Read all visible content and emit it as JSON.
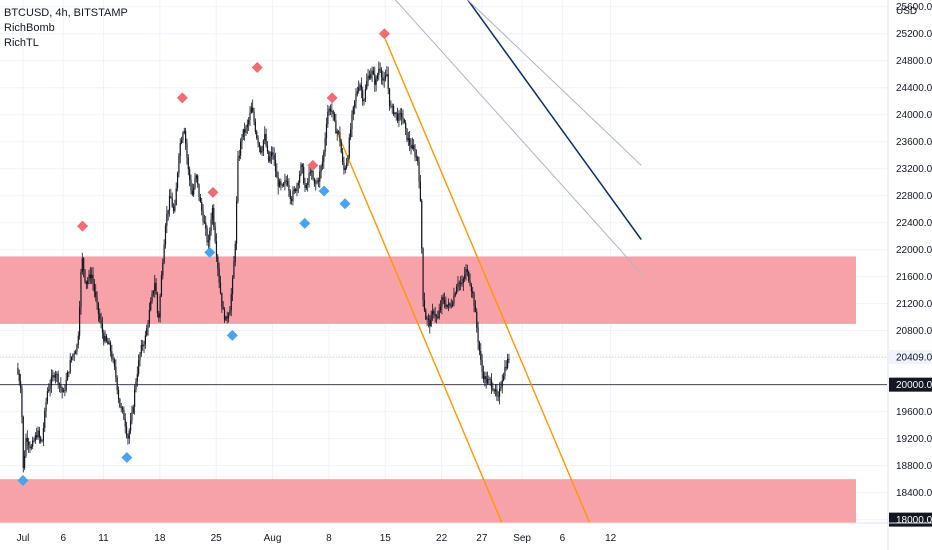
{
  "header": {
    "symbol_line": "BTCUSD, 4h, BITSTAMP",
    "indicators": [
      "RichBomb",
      "RichTL"
    ]
  },
  "chart_data": {
    "type": "candlestick",
    "symbol": "BTCUSD",
    "timeframe": "4h",
    "exchange": "BITSTAMP",
    "y_axis_unit": "USD",
    "ylim": [
      17950,
      25700
    ],
    "y_ticks": [
      18000,
      18400,
      18800,
      19200,
      19600,
      20000,
      20400,
      20800,
      21200,
      21600,
      22000,
      22400,
      22800,
      23200,
      23600,
      24000,
      24400,
      24800,
      25200,
      25600
    ],
    "x_ticks": [
      {
        "label": "Jul",
        "day": 1
      },
      {
        "label": "6",
        "day": 6
      },
      {
        "label": "11",
        "day": 11
      },
      {
        "label": "18",
        "day": 18
      },
      {
        "label": "25",
        "day": 25
      },
      {
        "label": "Aug",
        "day": 32
      },
      {
        "label": "8",
        "day": 39
      },
      {
        "label": "15",
        "day": 46
      },
      {
        "label": "22",
        "day": 53
      },
      {
        "label": "27",
        "day": 58
      },
      {
        "label": "Sep",
        "day": 63
      },
      {
        "label": "6",
        "day": 68
      },
      {
        "label": "12",
        "day": 74
      }
    ],
    "price_path": [
      [
        0.2,
        20250
      ],
      [
        0.8,
        19950
      ],
      [
        1.0,
        18700
      ],
      [
        1.4,
        19250
      ],
      [
        2.0,
        19050
      ],
      [
        2.8,
        19300
      ],
      [
        3.3,
        19100
      ],
      [
        4.0,
        19900
      ],
      [
        5.0,
        20200
      ],
      [
        6.0,
        19850
      ],
      [
        7.0,
        20400
      ],
      [
        7.8,
        20600
      ],
      [
        8.3,
        21900
      ],
      [
        8.8,
        21500
      ],
      [
        9.5,
        21650
      ],
      [
        10.2,
        21150
      ],
      [
        11.0,
        20700
      ],
      [
        11.8,
        20550
      ],
      [
        12.5,
        20150
      ],
      [
        13.0,
        19700
      ],
      [
        13.6,
        19500
      ],
      [
        14.0,
        19200
      ],
      [
        14.5,
        19500
      ],
      [
        15.0,
        20050
      ],
      [
        15.6,
        20500
      ],
      [
        16.2,
        20700
      ],
      [
        16.8,
        21150
      ],
      [
        17.4,
        21550
      ],
      [
        17.8,
        20900
      ],
      [
        18.2,
        21600
      ],
      [
        18.7,
        22400
      ],
      [
        19.3,
        22800
      ],
      [
        19.8,
        22500
      ],
      [
        20.4,
        23500
      ],
      [
        21.0,
        23850
      ],
      [
        21.5,
        23200
      ],
      [
        22.0,
        22800
      ],
      [
        22.5,
        23100
      ],
      [
        23.0,
        22700
      ],
      [
        23.5,
        22400
      ],
      [
        24.0,
        22050
      ],
      [
        24.5,
        22650
      ],
      [
        25.0,
        22000
      ],
      [
        25.4,
        21500
      ],
      [
        25.8,
        21100
      ],
      [
        26.2,
        20950
      ],
      [
        26.7,
        21150
      ],
      [
        27.1,
        21600
      ],
      [
        27.4,
        22200
      ],
      [
        27.7,
        23300
      ],
      [
        28.2,
        23700
      ],
      [
        28.8,
        23800
      ],
      [
        29.4,
        24100
      ],
      [
        30.0,
        23700
      ],
      [
        30.6,
        23450
      ],
      [
        31.0,
        23700
      ],
      [
        31.5,
        23300
      ],
      [
        32.0,
        23450
      ],
      [
        32.6,
        23000
      ],
      [
        33.2,
        22900
      ],
      [
        33.8,
        23050
      ],
      [
        34.3,
        22750
      ],
      [
        35.0,
        22950
      ],
      [
        35.6,
        23250
      ],
      [
        36.1,
        22850
      ],
      [
        36.7,
        23200
      ],
      [
        37.2,
        22950
      ],
      [
        37.7,
        23050
      ],
      [
        38.3,
        23350
      ],
      [
        38.8,
        24050
      ],
      [
        39.3,
        24100
      ],
      [
        39.8,
        23800
      ],
      [
        40.3,
        23700
      ],
      [
        40.8,
        23150
      ],
      [
        41.3,
        23350
      ],
      [
        41.8,
        23900
      ],
      [
        42.3,
        24250
      ],
      [
        42.8,
        24500
      ],
      [
        43.3,
        24200
      ],
      [
        43.8,
        24550
      ],
      [
        44.3,
        24650
      ],
      [
        44.8,
        24450
      ],
      [
        45.3,
        24750
      ],
      [
        45.8,
        24450
      ],
      [
        46.2,
        24600
      ],
      [
        46.6,
        24100
      ],
      [
        47.1,
        24050
      ],
      [
        47.6,
        23950
      ],
      [
        48.1,
        24000
      ],
      [
        48.6,
        23700
      ],
      [
        49.1,
        23550
      ],
      [
        49.6,
        23450
      ],
      [
        50.1,
        23300
      ],
      [
        50.4,
        22600
      ],
      [
        50.7,
        21300
      ],
      [
        51.0,
        21000
      ],
      [
        51.5,
        20900
      ],
      [
        52.0,
        21100
      ],
      [
        52.5,
        20950
      ],
      [
        53.0,
        21250
      ],
      [
        53.5,
        21200
      ],
      [
        54.0,
        21150
      ],
      [
        54.5,
        21300
      ],
      [
        55.0,
        21550
      ],
      [
        55.5,
        21450
      ],
      [
        56.0,
        21700
      ],
      [
        56.5,
        21550
      ],
      [
        57.0,
        21250
      ],
      [
        57.5,
        20700
      ],
      [
        58.0,
        20200
      ],
      [
        58.5,
        20050
      ],
      [
        59.0,
        20050
      ],
      [
        59.5,
        19950
      ],
      [
        60.0,
        19750
      ],
      [
        60.5,
        20100
      ],
      [
        61.0,
        20300
      ],
      [
        61.4,
        20400
      ]
    ],
    "last_price": 20409.0,
    "horizontal_level": 20000.0,
    "support_resistance_zones": [
      {
        "from": 20900,
        "to": 21900
      },
      {
        "from": 17950,
        "to": 18600
      }
    ],
    "sell_markers": [
      {
        "day": 8.4,
        "price": 22350
      },
      {
        "day": 20.8,
        "price": 24250
      },
      {
        "day": 24.6,
        "price": 22850
      },
      {
        "day": 30.1,
        "price": 24700
      },
      {
        "day": 37.0,
        "price": 23250
      },
      {
        "day": 39.4,
        "price": 24250
      },
      {
        "day": 45.9,
        "price": 25200
      }
    ],
    "buy_markers": [
      {
        "day": 1.0,
        "price": 18580
      },
      {
        "day": 13.9,
        "price": 18920
      },
      {
        "day": 24.2,
        "price": 21960
      },
      {
        "day": 27.0,
        "price": 20730
      },
      {
        "day": 36.0,
        "price": 22390
      },
      {
        "day": 38.4,
        "price": 22870
      },
      {
        "day": 41.0,
        "price": 22680
      }
    ],
    "trend_channel": {
      "color": "#ff9800",
      "upper": [
        [
          46.0,
          25120
        ],
        [
          71.4,
          17950
        ]
      ],
      "lower": [
        [
          40.0,
          23750
        ],
        [
          60.5,
          17950
        ]
      ]
    },
    "trend_lines": [
      {
        "color": "#0c2d6b",
        "from": [
          50.5,
          26650
        ],
        "to": [
          77.8,
          22150
        ]
      },
      {
        "color": "#b2b5be",
        "from": [
          43.5,
          26200
        ],
        "to": [
          77.8,
          21650
        ]
      },
      {
        "color": "#b2b5be",
        "from": [
          54.5,
          25900
        ],
        "to": [
          77.8,
          23250
        ]
      }
    ],
    "price_scale_labels": [
      {
        "text": "20409.00",
        "price": 20409,
        "style": "highlight"
      },
      {
        "text": "20000.00",
        "price": 20000,
        "style": "dark"
      },
      {
        "text": "18000.00",
        "price": 18000,
        "style": "dark"
      }
    ],
    "colors": {
      "zone": "#f7a1a9",
      "sell_marker": "#f06c73",
      "buy_marker": "#4aa3f0",
      "candle": "#131722",
      "level_line": "#434651",
      "grid": "#f0f3fa"
    }
  }
}
